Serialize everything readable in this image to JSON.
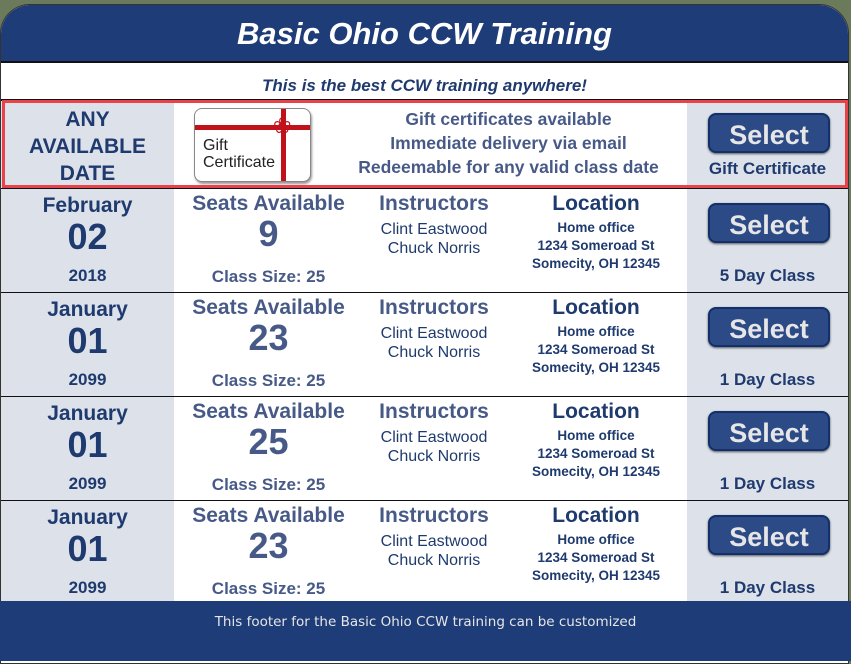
{
  "header": {
    "title": "Basic Ohio CCW Training"
  },
  "tagline": "This is the best CCW training anywhere!",
  "gift": {
    "date_lines": [
      "ANY",
      "AVAILABLE",
      "DATE"
    ],
    "image_text": [
      "Gift",
      "Certificate"
    ],
    "lines": [
      "Gift certificates available",
      "Immediate delivery via email",
      "Redeemable for any valid class date"
    ],
    "button": "Select",
    "button_label": "Gift Certificate"
  },
  "labels": {
    "seats": "Seats Available",
    "instructors": "Instructors",
    "location": "Location",
    "select": "Select"
  },
  "classes": [
    {
      "month": "February",
      "day": "02",
      "year": "2018",
      "seats": "9",
      "size": "Class Size: 25",
      "instructors": [
        "Clint Eastwood",
        "Chuck Norris"
      ],
      "location": [
        "Home office",
        "1234 Someroad St",
        "Somecity, OH 12345"
      ],
      "type": "5 Day Class"
    },
    {
      "month": "January",
      "day": "01",
      "year": "2099",
      "seats": "23",
      "size": "Class Size: 25",
      "instructors": [
        "Clint Eastwood",
        "Chuck Norris"
      ],
      "location": [
        "Home office",
        "1234 Someroad St",
        "Somecity, OH 12345"
      ],
      "type": "1 Day Class"
    },
    {
      "month": "January",
      "day": "01",
      "year": "2099",
      "seats": "25",
      "size": "Class Size: 25",
      "instructors": [
        "Clint Eastwood",
        "Chuck Norris"
      ],
      "location": [
        "Home office",
        "1234 Someroad St",
        "Somecity, OH 12345"
      ],
      "type": "1 Day Class"
    },
    {
      "month": "January",
      "day": "01",
      "year": "2099",
      "seats": "23",
      "size": "Class Size: 25",
      "instructors": [
        "Clint Eastwood",
        "Chuck Norris"
      ],
      "location": [
        "Home office",
        "1234 Someroad St",
        "Somecity, OH 12345"
      ],
      "type": "1 Day Class"
    }
  ],
  "footer": "This footer for the Basic Ohio CCW training can be customized",
  "colors": {
    "brand": "#1d3c78",
    "highlight": "#e8424a"
  }
}
